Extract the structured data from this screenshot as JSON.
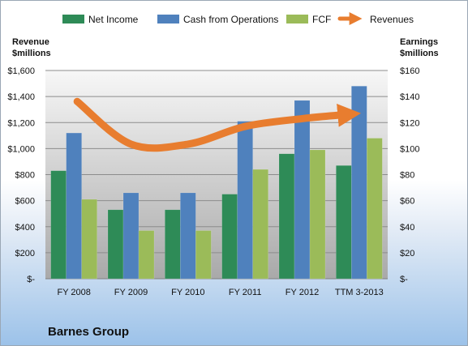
{
  "chart_data": {
    "type": "bar",
    "title": "",
    "company": "Barnes Group",
    "categories": [
      "FY 2008",
      "FY 2009",
      "FY 2010",
      "FY 2011",
      "FY 2012",
      "TTM 3-2013"
    ],
    "left_axis": {
      "title_line1": "Revenue",
      "title_line2": "$millions",
      "range": [
        0,
        1600
      ],
      "ticks": [
        {
          "value": 0,
          "label": "$-"
        },
        {
          "value": 200,
          "label": "$200"
        },
        {
          "value": 400,
          "label": "$400"
        },
        {
          "value": 600,
          "label": "$600"
        },
        {
          "value": 800,
          "label": "$800"
        },
        {
          "value": 1000,
          "label": "$1,000"
        },
        {
          "value": 1200,
          "label": "$1,200"
        },
        {
          "value": 1400,
          "label": "$1,400"
        },
        {
          "value": 1600,
          "label": "$1,600"
        }
      ]
    },
    "right_axis": {
      "title_line1": "Earnings",
      "title_line2": "$millions",
      "range": [
        0,
        160
      ],
      "ticks": [
        {
          "value": 0,
          "label": "$-"
        },
        {
          "value": 20,
          "label": "$20"
        },
        {
          "value": 40,
          "label": "$40"
        },
        {
          "value": 60,
          "label": "$60"
        },
        {
          "value": 80,
          "label": "$80"
        },
        {
          "value": 100,
          "label": "$100"
        },
        {
          "value": 120,
          "label": "$120"
        },
        {
          "value": 140,
          "label": "$140"
        },
        {
          "value": 160,
          "label": "$160"
        }
      ]
    },
    "series": [
      {
        "name": "Net Income",
        "type": "bar",
        "axis": "right",
        "color": "#2e8b57",
        "values": [
          83,
          53,
          53,
          65,
          96,
          87
        ]
      },
      {
        "name": "Cash from Operations",
        "type": "bar",
        "axis": "right",
        "color": "#4f81bd",
        "values": [
          112,
          66,
          66,
          121,
          137,
          148
        ]
      },
      {
        "name": "FCF",
        "type": "bar",
        "axis": "right",
        "color": "#9bbb59",
        "values": [
          61,
          37,
          37,
          84,
          99,
          108
        ]
      },
      {
        "name": "Revenues",
        "type": "line",
        "axis": "left",
        "color": "#e87d2f",
        "values": [
          1362,
          1034,
          1034,
          1170,
          1230,
          1262
        ]
      }
    ],
    "grid": true,
    "legend_position": "top"
  }
}
